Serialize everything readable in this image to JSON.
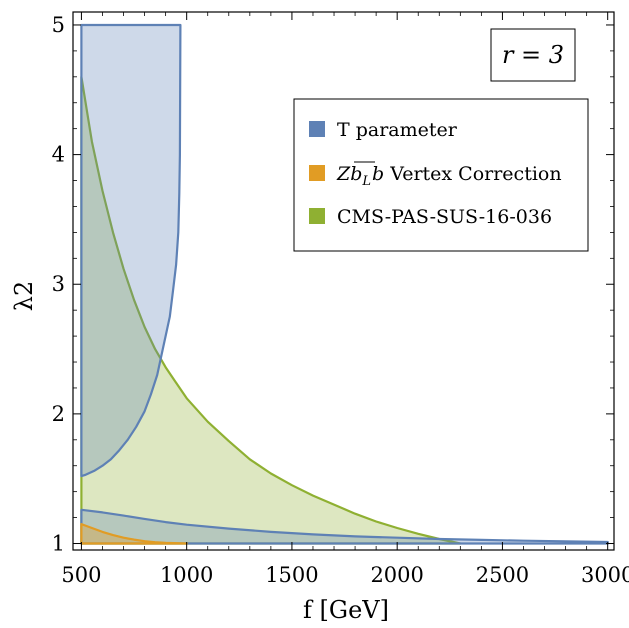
{
  "chart_data": {
    "type": "area",
    "title": "",
    "xlabel": "f [GeV]",
    "ylabel": "λ2",
    "xlim": [
      460,
      3030
    ],
    "ylim": [
      0.95,
      5.1
    ],
    "x_ticks": [
      500,
      1000,
      1500,
      2000,
      2500,
      3000
    ],
    "y_ticks": [
      1,
      2,
      3,
      4,
      5
    ],
    "x_tick_labels": [
      "500",
      "1000",
      "1500",
      "2000",
      "2500",
      "3000"
    ],
    "y_tick_labels": [
      "1",
      "2",
      "3",
      "4",
      "5"
    ],
    "annotation": "r = 3",
    "legend_position": "top-right",
    "colors": {
      "t_parameter": "#5E81B5",
      "vertex": "#E19C24",
      "cms": "#8FB032"
    },
    "series": [
      {
        "name": "T parameter",
        "upper_region": {
          "x": [
            500,
            500,
            970,
            968,
            965,
            960,
            950,
            935,
            920,
            900,
            880,
            860,
            830,
            800,
            760,
            720,
            680,
            640,
            600,
            560,
            520,
            500
          ],
          "y": [
            1.52,
            5.0,
            5.0,
            4.0,
            3.7,
            3.4,
            3.15,
            2.95,
            2.75,
            2.6,
            2.45,
            2.3,
            2.15,
            2.02,
            1.9,
            1.8,
            1.72,
            1.65,
            1.6,
            1.56,
            1.53,
            1.52
          ]
        },
        "lower_region": {
          "x": [
            500,
            600,
            700,
            800,
            900,
            1000,
            1200,
            1400,
            1600,
            1800,
            2000,
            2200,
            2400,
            2600,
            2800,
            3000,
            3000,
            2500,
            2000,
            1500,
            1000,
            500
          ],
          "y": [
            1.26,
            1.24,
            1.215,
            1.19,
            1.165,
            1.145,
            1.115,
            1.09,
            1.07,
            1.055,
            1.045,
            1.035,
            1.028,
            1.022,
            1.017,
            1.012,
            1.0,
            1.0,
            1.0,
            1.0,
            1.0,
            1.0
          ]
        }
      },
      {
        "name": "Z b̄_L b Vertex Correction",
        "label_parts": [
          "Z",
          "b",
          "L",
          "b",
          " Vertex Correction"
        ],
        "region": {
          "x": [
            500,
            550,
            600,
            650,
            700,
            750,
            800,
            850,
            900,
            1000,
            1000,
            500
          ],
          "y": [
            1.15,
            1.12,
            1.09,
            1.065,
            1.045,
            1.03,
            1.018,
            1.01,
            1.005,
            1.0,
            1.0,
            1.0
          ]
        }
      },
      {
        "name": "CMS-PAS-SUS-16-036",
        "region": {
          "x": [
            500,
            550,
            600,
            650,
            700,
            750,
            800,
            850,
            900,
            950,
            1000,
            1100,
            1200,
            1300,
            1400,
            1500,
            1600,
            1700,
            1800,
            1900,
            2000,
            2100,
            2200,
            2300,
            2300,
            500
          ],
          "y": [
            4.6,
            4.1,
            3.72,
            3.4,
            3.12,
            2.88,
            2.67,
            2.5,
            2.36,
            2.24,
            2.12,
            1.94,
            1.79,
            1.65,
            1.54,
            1.45,
            1.37,
            1.3,
            1.23,
            1.17,
            1.12,
            1.075,
            1.035,
            1.0,
            1.0,
            1.0
          ]
        }
      }
    ]
  }
}
